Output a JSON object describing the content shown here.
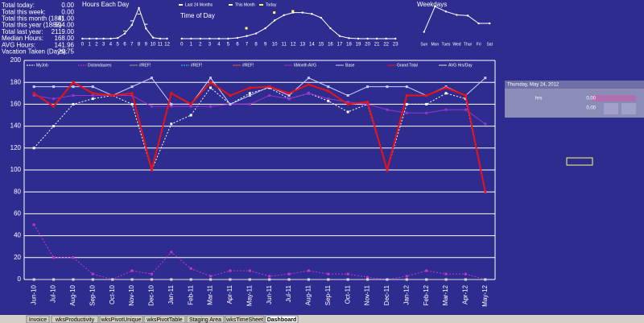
{
  "summary": {
    "rows": [
      {
        "label": "Total today:",
        "value": "0.00"
      },
      {
        "label": "Total this week:",
        "value": "0.00"
      },
      {
        "label": "Total this month (184)",
        "value": "81.00"
      },
      {
        "label": "Total this year (1888)",
        "value": "594.00"
      },
      {
        "label": "Total last year:",
        "value": "2119.00"
      },
      {
        "label": "Median Hours:",
        "value": "168.00"
      },
      {
        "label": "AVG Hours:",
        "value": "141.96"
      },
      {
        "label": "Vacation Taken (Days):",
        "value": "29.75"
      }
    ]
  },
  "chart_data": [
    {
      "type": "line",
      "title": "Hours Each Day",
      "categories": [
        "0",
        "1",
        "2",
        "3",
        "4",
        "5",
        "6",
        "7",
        "8",
        "9",
        "10",
        "11",
        "12"
      ],
      "series": [
        {
          "name": "Last 24 Months",
          "color": "#ffffff",
          "values": [
            0,
            0,
            0,
            0,
            0,
            0.2,
            1.5,
            4,
            9,
            3,
            0.3,
            0,
            0
          ]
        },
        {
          "name": "This Month",
          "color": "#ffffff",
          "values": [
            null,
            null,
            null,
            null,
            null,
            null,
            2,
            5,
            7,
            4,
            null,
            null,
            null
          ]
        },
        {
          "name": "Today",
          "color": "#ffff66",
          "values": [
            null,
            null,
            null,
            null,
            null,
            null,
            null,
            null,
            null,
            null,
            null,
            null,
            null
          ]
        }
      ]
    },
    {
      "type": "line",
      "title": "Time of Day",
      "categories": [
        "0",
        "1",
        "2",
        "3",
        "4",
        "5",
        "6",
        "7",
        "8",
        "9",
        "10",
        "11",
        "12",
        "13",
        "14",
        "15",
        "16",
        "17",
        "18",
        "19",
        "20",
        "21",
        "22",
        "23"
      ],
      "series": [
        {
          "name": "Last 24 Months",
          "color": "#ffffff",
          "values": [
            0,
            0,
            0,
            0,
            0,
            0,
            0.3,
            1,
            2,
            4,
            7,
            9,
            10,
            10,
            9.5,
            8,
            4,
            1,
            0.2,
            0,
            0,
            0,
            0,
            0
          ]
        },
        {
          "name": "Today",
          "color": "#ffff66",
          "values": [
            null,
            null,
            null,
            null,
            null,
            null,
            null,
            4,
            null,
            null,
            10,
            null,
            10.5,
            null,
            null,
            null,
            null,
            null,
            null,
            null,
            null,
            null,
            null,
            null
          ]
        }
      ]
    },
    {
      "type": "line",
      "title": "Weekdays",
      "categories": [
        "Sun",
        "Mon",
        "Tues",
        "Wed",
        "Thur",
        "Fri",
        "Sat"
      ],
      "series": [
        {
          "name": "Last 24 Months",
          "color": "#ffffff",
          "values": [
            2,
            9.5,
            8,
            7,
            6.8,
            4.5,
            4.5
          ]
        }
      ]
    },
    {
      "type": "line",
      "categories": [
        "Jun-10",
        "Jul-10",
        "Aug-10",
        "Sep-10",
        "Oct-10",
        "Nov-10",
        "Dec-10",
        "Jan-11",
        "Feb-11",
        "Mar-11",
        "Apr-11",
        "May-11",
        "Jun-11",
        "Jul-11",
        "Aug-11",
        "Sep-11",
        "Oct-11",
        "Nov-11",
        "Dec-11",
        "Jan-12",
        "Feb-12",
        "Mar-12",
        "Apr-12",
        "May-12"
      ],
      "ylim": [
        0,
        200
      ],
      "yticks": [
        0,
        20,
        40,
        60,
        80,
        100,
        120,
        140,
        160,
        180,
        200
      ],
      "grid": true,
      "series": [
        {
          "name": "MyJob",
          "color": "#ffffff",
          "dash": true,
          "values": [
            120,
            140,
            160,
            165,
            168,
            160,
            100,
            142,
            150,
            175,
            160,
            170,
            175,
            165,
            170,
            163,
            153,
            160,
            100,
            160,
            160,
            170,
            165,
            80
          ]
        },
        {
          "name": "Dictondaures",
          "color": "#cc33cc",
          "dash": true,
          "values": [
            50,
            20,
            20,
            5,
            0,
            8,
            5,
            25,
            10,
            3,
            8,
            8,
            3,
            5,
            8,
            5,
            5,
            2,
            0,
            3,
            8,
            5,
            5,
            0
          ]
        },
        {
          "name": "#REF!",
          "color": "#999999",
          "dash": false,
          "values": [
            0,
            0,
            0,
            0,
            0,
            0,
            0,
            0,
            0,
            0,
            0,
            0,
            0,
            0,
            0,
            0,
            0,
            0,
            0,
            0,
            0,
            0,
            0,
            0
          ]
        },
        {
          "name": "#REF!",
          "color": "#33ccff",
          "dash": true,
          "values": [
            0,
            0,
            0,
            0,
            0,
            0,
            0,
            0,
            0,
            0,
            0,
            0,
            0,
            0,
            0,
            0,
            0,
            0,
            0,
            0,
            0,
            0,
            0,
            0
          ]
        },
        {
          "name": "#REF!",
          "color": "#cc6633",
          "dash": false,
          "values": [
            0,
            0,
            0,
            0,
            0,
            0,
            0,
            0,
            0,
            0,
            0,
            0,
            0,
            0,
            0,
            0,
            0,
            0,
            0,
            0,
            0,
            0,
            0,
            0
          ]
        },
        {
          "name": "6Month AVG",
          "color": "#9933cc",
          "dash": false,
          "values": [
            168,
            165,
            168,
            168,
            168,
            168,
            158,
            158,
            158,
            158,
            160,
            160,
            168,
            165,
            170,
            165,
            162,
            160,
            155,
            152,
            152,
            155,
            155,
            142
          ]
        },
        {
          "name": "Base",
          "color": "#ccccff",
          "dash": false,
          "values": [
            176,
            176,
            176,
            176,
            168,
            176,
            184,
            160,
            160,
            184,
            160,
            168,
            176,
            168,
            184,
            176,
            168,
            176,
            176,
            176,
            168,
            176,
            168,
            184
          ]
        },
        {
          "name": "Grand Total",
          "color": "#ee1111",
          "dash": false,
          "values": [
            170,
            158,
            180,
            170,
            168,
            170,
            100,
            170,
            160,
            180,
            168,
            175,
            176,
            170,
            178,
            172,
            160,
            162,
            100,
            168,
            168,
            175,
            168,
            80
          ]
        },
        {
          "name": "AVG Hrs/Day",
          "color": "#dddddd",
          "dash": false,
          "values": [
            0,
            0,
            0,
            0,
            0,
            0,
            0,
            0,
            0,
            0,
            0,
            0,
            0,
            0,
            0,
            0,
            0,
            0,
            0,
            0,
            0,
            0,
            0,
            0
          ]
        }
      ]
    }
  ],
  "panel": {
    "date": "Thursday, May 24, 2012",
    "label": "hrs",
    "value1": "0.00",
    "value2": "0.00"
  },
  "tabs": [
    "Invoice",
    "wksProductivity",
    "wksPivotUnique",
    "wksPivotTable",
    "Staging Area",
    "wksTimeSheet",
    "Dashboard"
  ]
}
